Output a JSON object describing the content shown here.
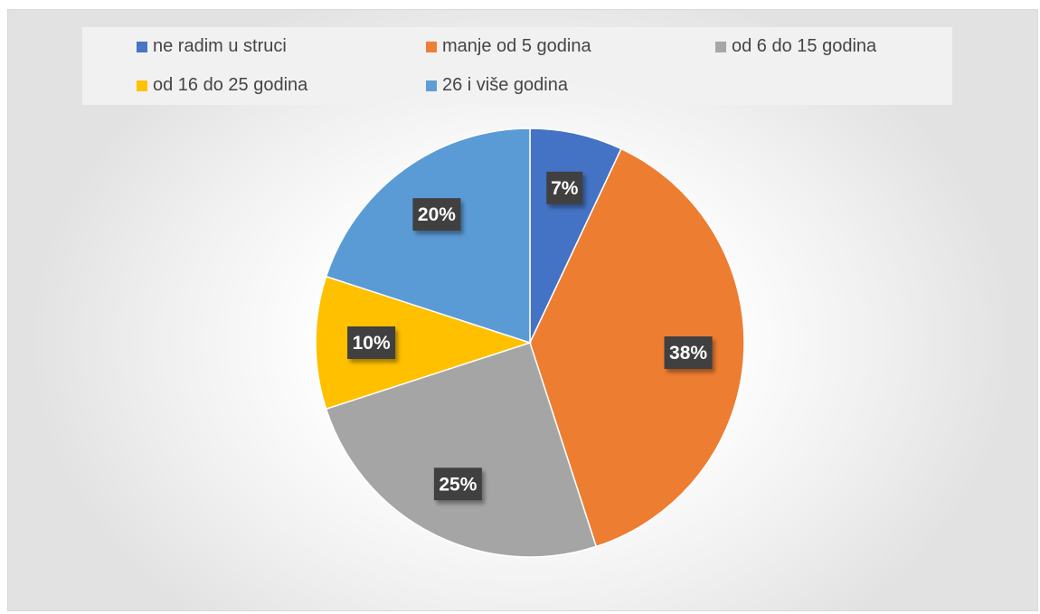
{
  "chart_data": {
    "type": "pie",
    "title": "",
    "legend_position": "top",
    "categories": [
      "ne radim u struci",
      "manje od 5 godina",
      "od 6 do 15 godina",
      "od 16 do 25 godina",
      "26 i više godina"
    ],
    "values": [
      7,
      38,
      25,
      10,
      20
    ],
    "labels": [
      "7%",
      "38%",
      "25%",
      "10%",
      "20%"
    ],
    "colors": [
      "#4472C4",
      "#ED7D31",
      "#A5A5A5",
      "#FFC000",
      "#5B9BD5"
    ]
  }
}
